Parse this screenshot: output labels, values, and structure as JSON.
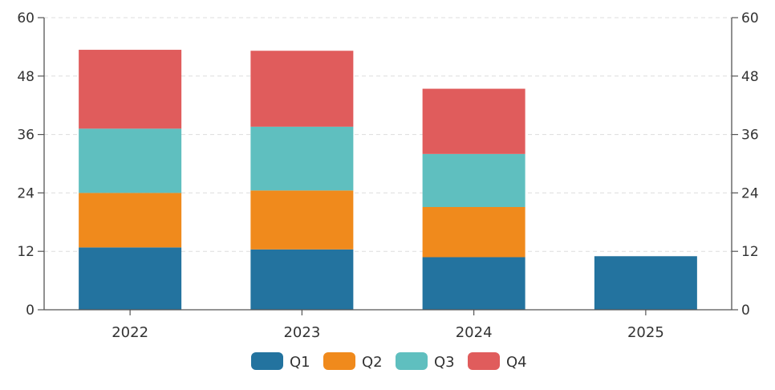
{
  "chart_data": {
    "type": "bar",
    "stacked": true,
    "categories": [
      "2022",
      "2023",
      "2024",
      "2025"
    ],
    "series": [
      {
        "name": "Q1",
        "color": "#23739f",
        "values": [
          12.8,
          12.4,
          10.8,
          11.0
        ]
      },
      {
        "name": "Q2",
        "color": "#f08a1c",
        "values": [
          11.2,
          12.1,
          10.3,
          0
        ]
      },
      {
        "name": "Q3",
        "color": "#5fbfbf",
        "values": [
          13.2,
          13.1,
          10.9,
          0
        ]
      },
      {
        "name": "Q4",
        "color": "#e05c5c",
        "values": [
          16.2,
          15.6,
          13.4,
          0
        ]
      }
    ],
    "y_ticks": [
      "0",
      "12",
      "24",
      "36",
      "48",
      "60"
    ],
    "ylim": [
      0,
      60
    ],
    "grid": true,
    "secondary_y_axis": true,
    "legend_position": "bottom-center",
    "title": "",
    "xlabel": "",
    "ylabel": ""
  }
}
